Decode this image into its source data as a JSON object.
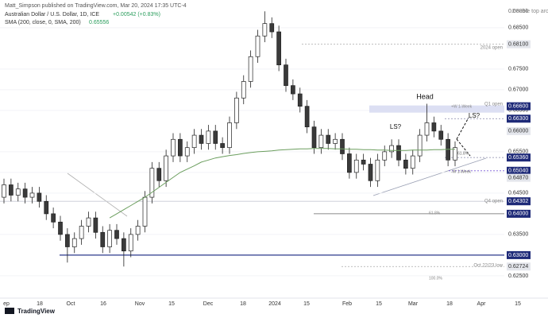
{
  "publisher": "Matt_Simpson published on TradingView.com, Mar 20, 2024 17:35 UTC-4",
  "footer": "TradingView",
  "chart_data": {
    "type": "candlestick",
    "title": "Australian Dollar / U.S. Dollar, 1D, ICE",
    "change": "+0.00542 (+0.83%)",
    "indicator": {
      "name": "SMA (200, close, 0, SMA, 200)",
      "value": 0.65556,
      "color": "#6b9e5e"
    },
    "ylim": [
      0.6196,
      0.6917
    ],
    "yticks": [
      {
        "value": 0.625,
        "label": "0.62500"
      },
      {
        "value": 0.635,
        "label": "0.63500"
      },
      {
        "value": 0.645,
        "label": "0.64500"
      },
      {
        "value": 0.65,
        "label": "0.65000"
      },
      {
        "value": 0.655,
        "label": "0.65500"
      },
      {
        "value": 0.665,
        "label": "0.66500"
      },
      {
        "value": 0.67,
        "label": "0.67000"
      },
      {
        "value": 0.675,
        "label": "0.67500"
      },
      {
        "value": 0.685,
        "label": "0.68500"
      }
    ],
    "grid": true,
    "xaxis_labels": [
      "ep",
      "18",
      "Oct",
      "16",
      "Nov",
      "15",
      "Dec",
      "18",
      "2024",
      "15",
      "Feb",
      "15",
      "Mar",
      "18",
      "Apr",
      "15"
    ],
    "up_color": "#ffffff",
    "down_color": "#3a3a3a",
    "open": [
      0.644,
      0.647,
      0.6445,
      0.646,
      0.644,
      0.645,
      0.643,
      0.64,
      0.638,
      0.635,
      0.632,
      0.634,
      0.637,
      0.639,
      0.6355,
      0.632,
      0.636,
      0.634,
      0.631,
      0.635,
      0.637,
      0.644,
      0.651,
      0.648,
      0.654,
      0.658,
      0.654,
      0.656,
      0.659,
      0.657,
      0.66,
      0.657,
      0.656,
      0.662,
      0.668,
      0.672,
      0.678,
      0.683,
      0.686,
      0.684,
      0.676,
      0.671,
      0.669,
      0.666,
      0.661,
      0.656,
      0.659,
      0.657,
      0.658,
      0.6545,
      0.65,
      0.653,
      0.652,
      0.648,
      0.653,
      0.655,
      0.6565,
      0.653,
      0.651,
      0.654,
      0.659,
      0.662,
      0.66,
      0.658,
      0.653
    ],
    "high": [
      0.6485,
      0.6485,
      0.6475,
      0.6475,
      0.6465,
      0.6465,
      0.6445,
      0.6415,
      0.6395,
      0.6365,
      0.6355,
      0.6385,
      0.6405,
      0.6405,
      0.637,
      0.6375,
      0.6375,
      0.6355,
      0.6365,
      0.6385,
      0.6455,
      0.6525,
      0.6525,
      0.6555,
      0.6595,
      0.6595,
      0.6575,
      0.6605,
      0.6605,
      0.6615,
      0.6615,
      0.6585,
      0.6635,
      0.6695,
      0.6735,
      0.6795,
      0.6845,
      0.68896,
      0.6875,
      0.6855,
      0.6775,
      0.6725,
      0.6705,
      0.6675,
      0.6625,
      0.6605,
      0.6605,
      0.6595,
      0.6595,
      0.656,
      0.6545,
      0.6545,
      0.6535,
      0.6545,
      0.6565,
      0.658,
      0.658,
      0.6545,
      0.6555,
      0.6605,
      0.6666,
      0.6635,
      0.6615,
      0.6595,
      0.6575
    ],
    "low": [
      0.6425,
      0.643,
      0.643,
      0.6425,
      0.6425,
      0.6415,
      0.6385,
      0.6365,
      0.6335,
      0.6282,
      0.6305,
      0.6325,
      0.6355,
      0.634,
      0.6305,
      0.6305,
      0.6325,
      0.62724,
      0.6295,
      0.6335,
      0.6355,
      0.6425,
      0.6465,
      0.6465,
      0.6525,
      0.6525,
      0.6525,
      0.6545,
      0.6555,
      0.6555,
      0.6555,
      0.6545,
      0.6545,
      0.6605,
      0.6665,
      0.6705,
      0.6765,
      0.6815,
      0.6825,
      0.6745,
      0.6695,
      0.6675,
      0.6645,
      0.6595,
      0.6545,
      0.6545,
      0.6555,
      0.6555,
      0.653,
      0.6485,
      0.6485,
      0.6505,
      0.6465,
      0.6465,
      0.6515,
      0.6535,
      0.6515,
      0.6495,
      0.6495,
      0.6525,
      0.6575,
      0.6585,
      0.6565,
      0.6515,
      0.6515
    ],
    "close": [
      0.647,
      0.6445,
      0.646,
      0.644,
      0.645,
      0.643,
      0.64,
      0.638,
      0.635,
      0.632,
      0.634,
      0.637,
      0.639,
      0.6355,
      0.632,
      0.636,
      0.634,
      0.631,
      0.635,
      0.637,
      0.644,
      0.651,
      0.648,
      0.654,
      0.658,
      0.654,
      0.656,
      0.659,
      0.657,
      0.66,
      0.657,
      0.656,
      0.662,
      0.668,
      0.672,
      0.678,
      0.683,
      0.686,
      0.684,
      0.676,
      0.671,
      0.669,
      0.666,
      0.661,
      0.656,
      0.659,
      0.657,
      0.658,
      0.6545,
      0.65,
      0.653,
      0.652,
      0.648,
      0.653,
      0.655,
      0.6565,
      0.653,
      0.651,
      0.654,
      0.659,
      0.662,
      0.66,
      0.658,
      0.653,
      0.656
    ],
    "sma": [
      null,
      null,
      null,
      null,
      null,
      null,
      null,
      null,
      null,
      null,
      null,
      null,
      null,
      null,
      null,
      0.639,
      0.64,
      0.641,
      0.642,
      0.643,
      0.644,
      0.6452,
      0.6464,
      0.6476,
      0.6488,
      0.65,
      0.6508,
      0.6516,
      0.6525,
      0.653,
      0.6535,
      0.6538,
      0.6541,
      0.6543,
      0.6546,
      0.6548,
      0.655,
      0.6551,
      0.6552,
      0.6554,
      0.6555,
      0.6556,
      0.6557,
      0.6557,
      0.6558,
      0.6558,
      0.6558,
      0.6557,
      0.6557,
      0.6556,
      0.6556,
      0.6555,
      0.6555,
      0.6554,
      0.6554,
      0.6553,
      0.6553,
      0.6553,
      0.6554,
      0.6554,
      0.6554,
      0.6555,
      0.6555,
      0.6556,
      0.6556
    ],
    "levels": [
      {
        "value": 0.68896,
        "label": "0.68896",
        "style": "plain"
      },
      {
        "value": 0.681,
        "label": "0.68100",
        "style": "grey"
      },
      {
        "value": 0.666,
        "label": "0.66600",
        "style": "navy"
      },
      {
        "value": 0.663,
        "label": "0.66300",
        "style": "navy"
      },
      {
        "value": 0.66,
        "label": "0.66000",
        "style": "grey"
      },
      {
        "value": 0.6536,
        "label": "0.65360",
        "style": "navy"
      },
      {
        "value": 0.6504,
        "label": "0.65040",
        "style": "navy"
      },
      {
        "value": 0.6487,
        "label": "0.64870",
        "style": "grey"
      },
      {
        "value": 0.64302,
        "label": "0.64302",
        "style": "navy"
      },
      {
        "value": 0.64,
        "label": "0.64000",
        "style": "navy"
      },
      {
        "value": 0.63,
        "label": "0.63000",
        "style": "navy"
      },
      {
        "value": 0.62724,
        "label": "0.62724",
        "style": "grey"
      }
    ],
    "annotations": [
      "Double top around Dec",
      "2024 open",
      "Q1 open",
      "+W 1-Week",
      "Head",
      "LS?",
      "LS?",
      "61.8%",
      "-W 1-Week",
      "Q4 open",
      "61.8%",
      "Oct 22/23 low",
      "100.0%"
    ]
  }
}
